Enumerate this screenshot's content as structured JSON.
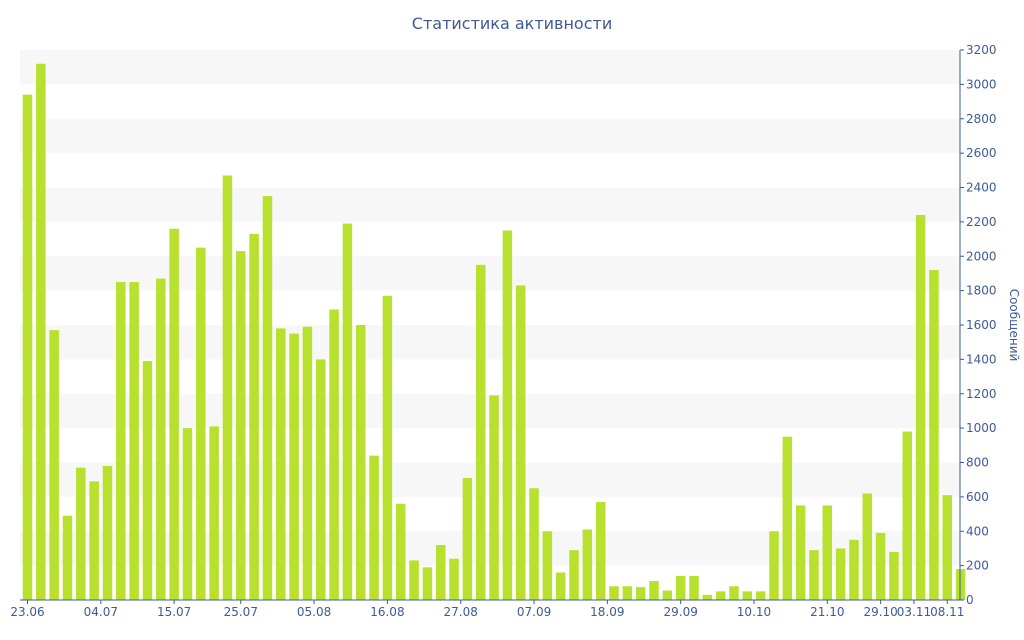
{
  "chart_data": {
    "type": "bar",
    "title": "Статистика активности",
    "ylabel": "Сообщений",
    "xlabel": "",
    "ylim": [
      0,
      3200
    ],
    "y_ticks": [
      0,
      200,
      400,
      600,
      800,
      1000,
      1200,
      1400,
      1600,
      1800,
      2000,
      2200,
      2400,
      2600,
      2800,
      3000,
      3200
    ],
    "y_axis_side": "right",
    "grid": "alternating horizontal bands",
    "bar_color": "#b8e02e",
    "band_color": "#f7f7f7",
    "text_color": "#3e5a99",
    "x_tick_labels": [
      {
        "label": "23.06",
        "index": 0
      },
      {
        "label": "04.07",
        "index": 5.5
      },
      {
        "label": "15.07",
        "index": 11
      },
      {
        "label": "25.07",
        "index": 16
      },
      {
        "label": "05.08",
        "index": 21.5
      },
      {
        "label": "16.08",
        "index": 27
      },
      {
        "label": "27.08",
        "index": 32.5
      },
      {
        "label": "07.09",
        "index": 38
      },
      {
        "label": "18.09",
        "index": 43.5
      },
      {
        "label": "29.09",
        "index": 49
      },
      {
        "label": "10.10",
        "index": 54.5
      },
      {
        "label": "21.10",
        "index": 60
      },
      {
        "label": "29.10",
        "index": 64
      },
      {
        "label": "03.11",
        "index": 66.5
      },
      {
        "label": "08.11",
        "index": 69
      }
    ],
    "values": [
      2940,
      3120,
      1570,
      490,
      770,
      690,
      780,
      1850,
      1850,
      1390,
      1870,
      2160,
      1000,
      2050,
      1010,
      2470,
      2030,
      2130,
      2350,
      1580,
      1550,
      1590,
      1400,
      1690,
      2190,
      1600,
      840,
      1770,
      560,
      230,
      190,
      320,
      240,
      710,
      1950,
      1190,
      2150,
      1830,
      650,
      400,
      160,
      290,
      410,
      570,
      80,
      80,
      75,
      110,
      55,
      140,
      140,
      30,
      50,
      80,
      50,
      50,
      400,
      950,
      550,
      290,
      550,
      300,
      350,
      620,
      390,
      280,
      980,
      2240,
      1920,
      610,
      180
    ]
  }
}
